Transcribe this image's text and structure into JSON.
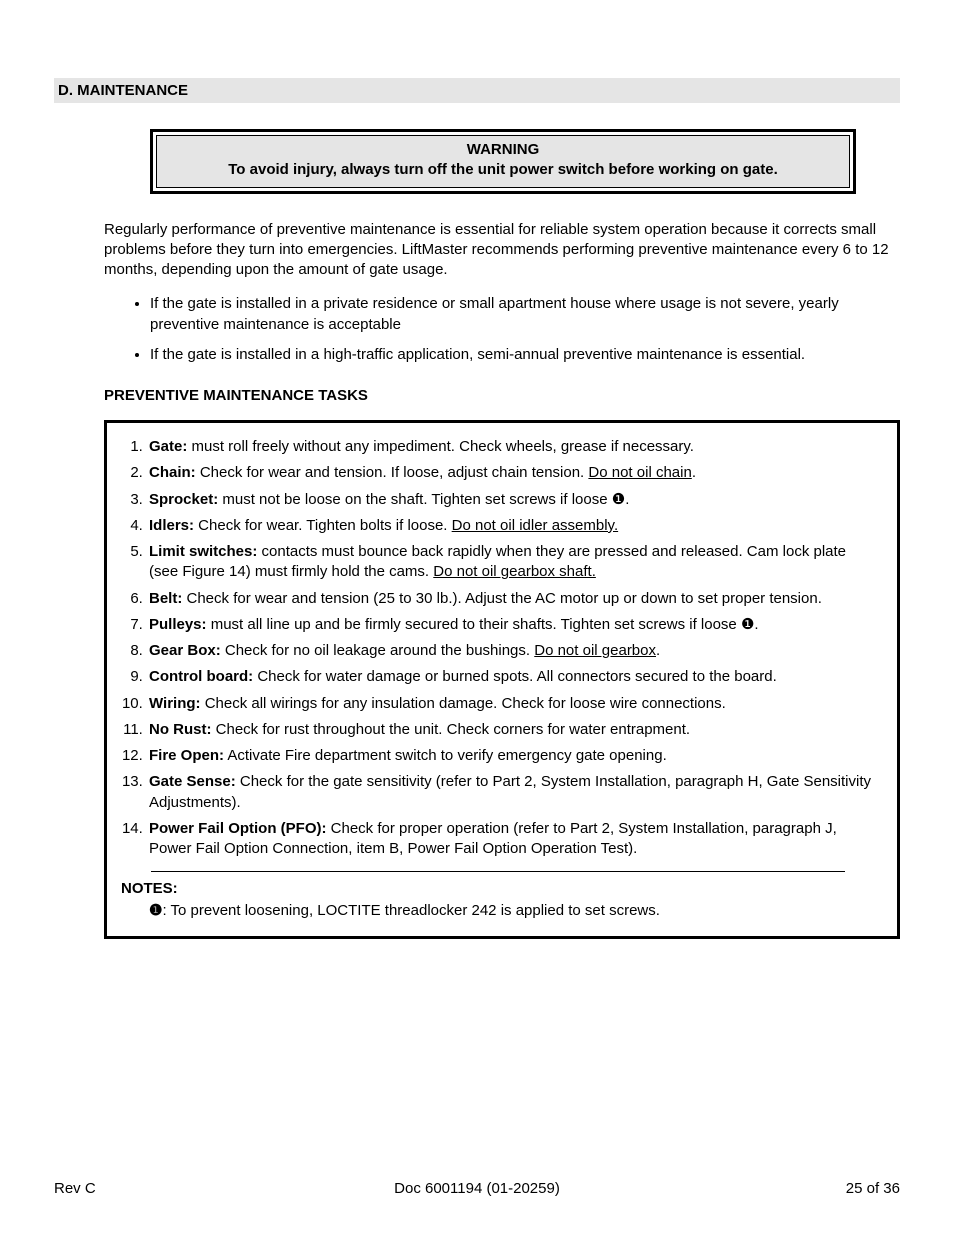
{
  "colors": {
    "page_bg": "#ffffff",
    "text": "#000000",
    "band_bg": "#e5e5e5",
    "border": "#000000"
  },
  "typography": {
    "body_fontsize_pt": 11,
    "bold_weight": 700,
    "family": "Arial"
  },
  "section_header": "D.  MAINTENANCE",
  "warning": {
    "title": "WARNING",
    "text": "To avoid injury, always turn off the unit power switch before working on gate."
  },
  "intro": "Regularly performance of preventive maintenance is essential for reliable system operation because it corrects small problems before they turn into emergencies.  LiftMaster recommends performing preventive maintenance every 6 to 12 months, depending upon the amount of gate usage.",
  "bullets": [
    "If the gate is installed in a private residence or small apartment house where usage is not severe, yearly preventive maintenance is acceptable",
    "If the gate is installed in a high-traffic application, semi-annual preventive maintenance is essential."
  ],
  "subheading": "PREVENTIVE MAINTENANCE TASKS",
  "note_symbol": "❶",
  "tasks": [
    {
      "label": "Gate:",
      "body": "  must roll freely without any impediment. Check wheels, grease if necessary."
    },
    {
      "label": "Chain:",
      "body": "  Check for wear and tension.  If loose, adjust chain tension.  ",
      "underlined_tail": "Do not oil chain",
      "tail_punct": "."
    },
    {
      "label": "Sprocket:",
      "body": "  must not be loose on the shaft.  Tighten set screws if loose ",
      "symbol_after": true,
      "tail_punct": "."
    },
    {
      "label": "Idlers:",
      "body": "  Check for wear.  Tighten bolts if loose.  ",
      "underlined_tail": "Do not oil idler assembly.",
      "tail_punct": ""
    },
    {
      "label": "Limit switches:",
      "body": "  contacts must bounce back rapidly when they are pressed and released.  Cam lock plate (see Figure 14) must firmly hold the cams.  ",
      "underlined_tail": "Do not oil gearbox shaft.",
      "tail_punct": ""
    },
    {
      "label": "Belt:",
      "body": "  Check for wear and tension (25 to 30 lb.).  Adjust the AC motor up or down to set proper tension."
    },
    {
      "label": "Pulleys:",
      "body": "  must all line up and be firmly secured to their shafts.  Tighten set screws if loose ",
      "symbol_after": true,
      "tail_punct": "."
    },
    {
      "label": "Gear Box:",
      "body": "  Check for no oil leakage around the bushings.  ",
      "underlined_tail": "Do not oil gearbox",
      "tail_punct": "."
    },
    {
      "label": "Control board:",
      "body": " Check for water damage or burned spots.  All connectors secured to the board."
    },
    {
      "label": "Wiring:",
      "body": "  Check all wirings for any insulation damage.  Check for loose wire connections."
    },
    {
      "label": "No Rust:",
      "body": "  Check for rust throughout the unit.  Check corners for water entrapment."
    },
    {
      "label": "Fire Open:",
      "body": "  Activate Fire department switch to verify emergency gate opening."
    },
    {
      "label": "Gate Sense:",
      "body": "  Check for the gate sensitivity (refer to Part 2, System Installation, paragraph H, Gate Sensitivity Adjustments)."
    },
    {
      "label": "Power Fail Option (PFO):",
      "body": " Check for proper operation (refer to Part 2, System Installation, paragraph J, Power Fail Option Connection, item B, Power Fail Option Operation Test)."
    }
  ],
  "notes": {
    "heading": "NOTES:",
    "line": ": To prevent loosening, LOCTITE threadlocker 242 is applied to set screws."
  },
  "footer": {
    "left": "Rev C",
    "center": "Doc 6001194 (01-20259)",
    "right": "25 of 36"
  }
}
